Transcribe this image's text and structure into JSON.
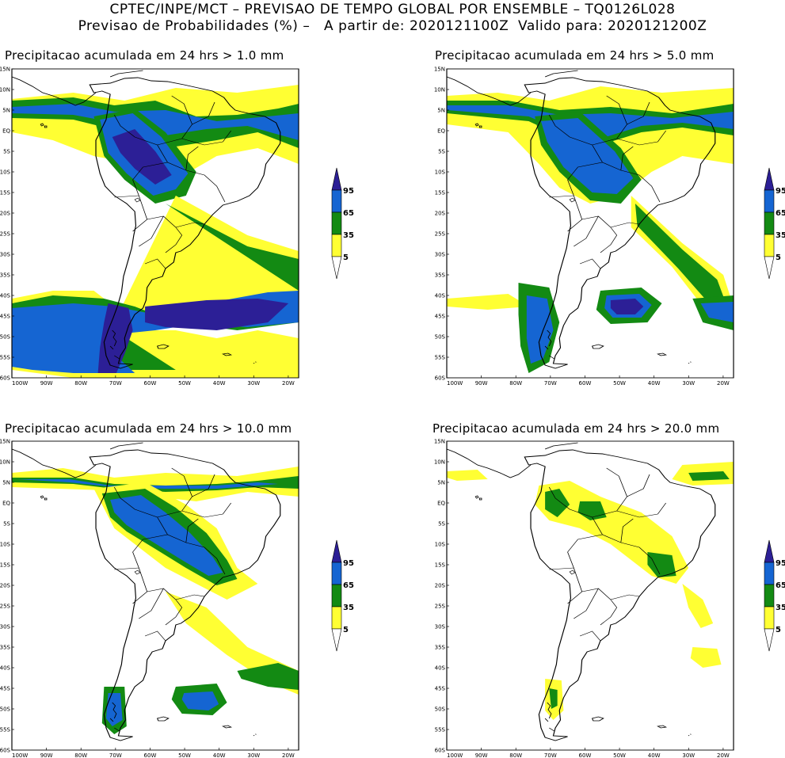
{
  "header": {
    "line1": "CPTEC/INPE/MCT – PREVISAO DE TEMPO GLOBAL POR ENSEMBLE – TQ0126L028",
    "line2": "Previsao de Probabilidades (%) –   A partir de: 2020121100Z  Valido para: 2020121200Z"
  },
  "lat_labels": [
    "15N",
    "10N",
    "5N",
    "EQ",
    "5S",
    "10S",
    "15S",
    "20S",
    "25S",
    "30S",
    "35S",
    "40S",
    "45S",
    "50S",
    "55S",
    "60S"
  ],
  "lon_labels": [
    "100W",
    "90W",
    "80W",
    "70W",
    "60W",
    "50W",
    "40W",
    "30W",
    "20W"
  ],
  "colorbar": {
    "levels": [
      "95",
      "65",
      "35",
      "5"
    ],
    "colors": {
      "c95": "#2c1f96",
      "c65": "#1565d2",
      "c35": "#138a13",
      "c5": "#ffff33"
    }
  },
  "panels": [
    {
      "title": "Precipitacao acumulada em 24 hrs > 1.0 mm"
    },
    {
      "title": "Precipitacao acumulada em 24 hrs > 5.0 mm"
    },
    {
      "title": "Precipitacao acumulada em 24 hrs > 10.0 mm"
    },
    {
      "title": "Precipitacao acumulada em 24 hrs > 20.0 mm"
    }
  ]
}
